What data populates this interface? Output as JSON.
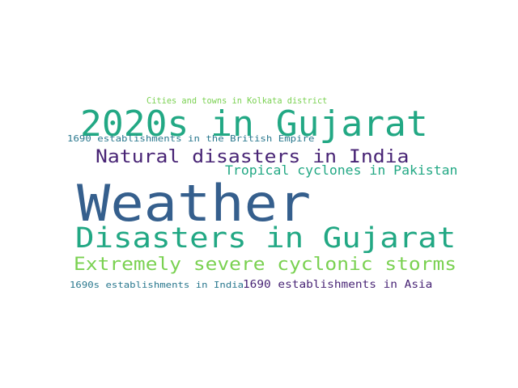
{
  "words": [
    {
      "text": "Cities and towns in Kolkata district",
      "color": "#7ad151"
    },
    {
      "text": "2020s in Gujarat",
      "color": "#22a884"
    },
    {
      "text": "1690 establishments in the British Empire",
      "color": "#2a788e"
    },
    {
      "text": "Natural disasters in India",
      "color": "#482475"
    },
    {
      "text": "Tropical cyclones in Pakistan",
      "color": "#22a884"
    },
    {
      "text": "Weather",
      "color": "#355f8d"
    },
    {
      "text": "Disasters in Gujarat",
      "color": "#22a884"
    },
    {
      "text": "Extremely severe cyclonic storms",
      "color": "#7ad151"
    },
    {
      "text": "1690s establishments in India",
      "color": "#2a788e"
    },
    {
      "text": "1690 establishments in Asia",
      "color": "#482475"
    }
  ]
}
